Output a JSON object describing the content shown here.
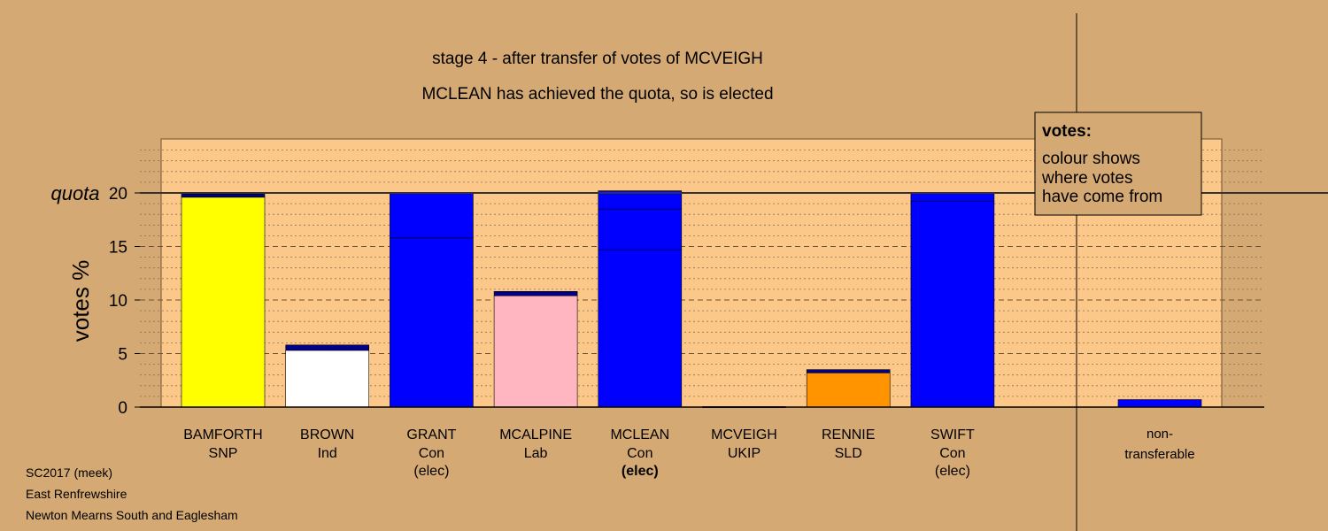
{
  "colors": {
    "background": "#d4a973",
    "plot_area": "#fcc88a",
    "SNP": "#ffff00",
    "Ind": "#ffffff",
    "Con": "#0000ff",
    "Lab": "#ffb6c1",
    "SLD": "#ff9400",
    "UKIP": "#8a2be2",
    "transfer": "#00008b"
  },
  "chart_data": {
    "type": "bar",
    "title": "stage 4 - after transfer of votes of MCVEIGH",
    "subtitle": "MCLEAN has achieved the quota, so is elected",
    "ylabel": "votes %",
    "ylim": [
      0,
      20
    ],
    "yticks": [
      0,
      5,
      10,
      15,
      20
    ],
    "quota": 20,
    "quota_label": "quota",
    "grid": true,
    "candidates": [
      {
        "name": "BAMFORTH",
        "party": "SNP",
        "status": "",
        "total": 19.9,
        "segments": [
          {
            "party": "SNP",
            "value": 19.6
          },
          {
            "party": "transfer",
            "value": 0.3
          }
        ]
      },
      {
        "name": "BROWN",
        "party": "Ind",
        "status": "",
        "total": 5.8,
        "segments": [
          {
            "party": "Ind",
            "value": 5.3
          },
          {
            "party": "transfer",
            "value": 0.5
          }
        ]
      },
      {
        "name": "GRANT",
        "party": "Con",
        "status": "(elec)",
        "total": 20.0,
        "segments": [
          {
            "party": "Con",
            "value": 15.8
          },
          {
            "party": "Con",
            "value": 4.2
          }
        ]
      },
      {
        "name": "MCALPINE",
        "party": "Lab",
        "status": "",
        "total": 10.8,
        "segments": [
          {
            "party": "Lab",
            "value": 10.4
          },
          {
            "party": "transfer",
            "value": 0.4
          }
        ]
      },
      {
        "name": "MCLEAN",
        "party": "Con",
        "status": "(elec)",
        "total": 20.2,
        "segments": [
          {
            "party": "Con",
            "value": 14.7
          },
          {
            "party": "Con",
            "value": 3.8
          },
          {
            "party": "Con",
            "value": 1.7
          }
        ]
      },
      {
        "name": "MCVEIGH",
        "party": "UKIP",
        "status": "",
        "total": 0.05,
        "segments": [
          {
            "party": "transfer",
            "value": 0.05
          }
        ]
      },
      {
        "name": "RENNIE",
        "party": "SLD",
        "status": "",
        "total": 3.5,
        "segments": [
          {
            "party": "SLD",
            "value": 3.2
          },
          {
            "party": "transfer",
            "value": 0.3
          }
        ]
      },
      {
        "name": "SWIFT",
        "party": "Con",
        "status": "(elec)",
        "total": 20.0,
        "segments": [
          {
            "party": "Con",
            "value": 19.2
          },
          {
            "party": "Con",
            "value": 0.8
          }
        ]
      }
    ],
    "nontransferable": {
      "label_line1": "non-",
      "label_line2": "transferable",
      "value": 0.7
    },
    "legend": {
      "title": "votes:",
      "lines": [
        "colour shows",
        "where votes",
        "have come from"
      ],
      "placement": "top-right"
    },
    "footer": [
      "SC2017 (meek)",
      "East Renfrewshire",
      "Newton Mearns South and Eaglesham"
    ]
  }
}
